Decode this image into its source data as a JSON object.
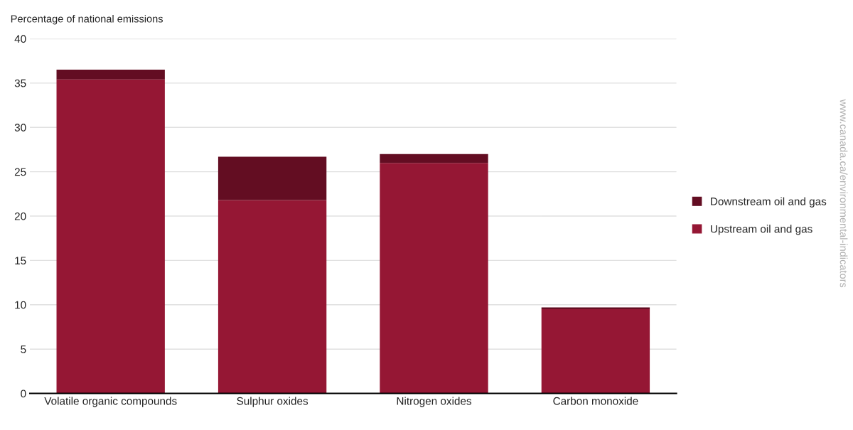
{
  "chart_data": {
    "type": "bar",
    "stacked": true,
    "ylabel": "Percentage of national emissions",
    "categories": [
      "Volatile organic compounds",
      "Sulphur oxides",
      "Nitrogen oxides",
      "Carbon monoxide"
    ],
    "series": [
      {
        "name": "Upstream oil and gas",
        "color": "#951734",
        "values": [
          35.4,
          21.8,
          26.0,
          9.5
        ]
      },
      {
        "name": "Downstream oil and gas",
        "color": "#630d22",
        "values": [
          1.1,
          4.9,
          1.0,
          0.2
        ]
      }
    ],
    "ylim": [
      0,
      40
    ],
    "yticks": [
      0,
      5,
      10,
      15,
      20,
      25,
      30,
      35,
      40
    ],
    "grid": "y",
    "legend": "right",
    "annotations": [
      "www.canada.ca/environmental-indicators"
    ]
  }
}
